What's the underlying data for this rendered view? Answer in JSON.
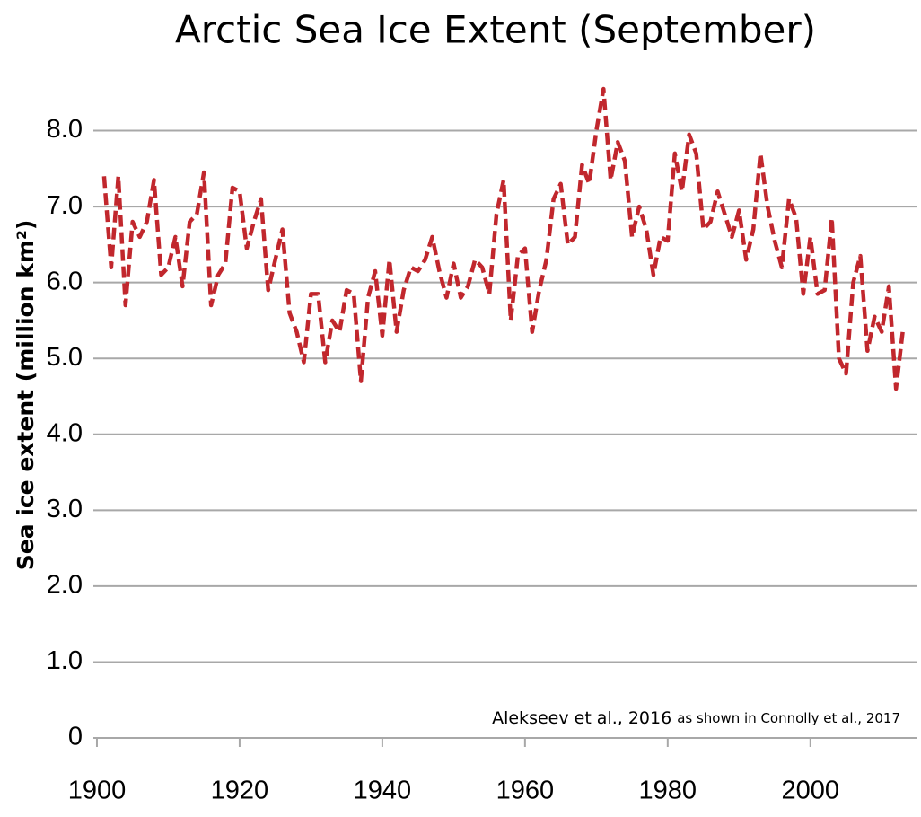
{
  "chart_data": {
    "type": "line",
    "title": "Arctic Sea Ice Extent (September)",
    "y_label": "Sea ice extent (million km²)",
    "annotations": [
      "Alekseev et al., 2016",
      "as shown in Connolly et al., 2017"
    ],
    "x": [
      1901,
      1902,
      1903,
      1904,
      1905,
      1906,
      1907,
      1908,
      1909,
      1910,
      1911,
      1912,
      1913,
      1914,
      1915,
      1916,
      1917,
      1918,
      1919,
      1920,
      1921,
      1922,
      1923,
      1924,
      1925,
      1926,
      1927,
      1928,
      1929,
      1930,
      1931,
      1932,
      1933,
      1934,
      1935,
      1936,
      1937,
      1938,
      1939,
      1940,
      1941,
      1942,
      1943,
      1944,
      1945,
      1946,
      1947,
      1948,
      1949,
      1950,
      1951,
      1952,
      1953,
      1954,
      1955,
      1956,
      1957,
      1958,
      1959,
      1960,
      1961,
      1962,
      1963,
      1964,
      1965,
      1966,
      1967,
      1968,
      1969,
      1970,
      1971,
      1972,
      1973,
      1974,
      1975,
      1976,
      1977,
      1978,
      1979,
      1980,
      1981,
      1982,
      1983,
      1984,
      1985,
      1986,
      1987,
      1988,
      1989,
      1990,
      1991,
      1992,
      1993,
      1994,
      1995,
      1996,
      1997,
      1998,
      1999,
      2000,
      2001,
      2002,
      2003,
      2004,
      2005,
      2006,
      2007,
      2008,
      2009,
      2010,
      2011,
      2012,
      2013
    ],
    "series": [
      {
        "color": "#c1272d",
        "values": [
          7.4,
          6.2,
          7.4,
          5.7,
          6.8,
          6.6,
          6.8,
          7.35,
          6.1,
          6.2,
          6.6,
          5.95,
          6.8,
          6.9,
          7.45,
          5.7,
          6.1,
          6.25,
          7.25,
          7.2,
          6.45,
          6.8,
          7.1,
          5.9,
          6.3,
          6.7,
          5.6,
          5.35,
          4.95,
          5.85,
          5.85,
          4.95,
          5.5,
          5.35,
          5.9,
          5.85,
          4.7,
          5.8,
          6.15,
          5.3,
          6.3,
          5.35,
          5.9,
          6.2,
          6.15,
          6.3,
          6.6,
          6.15,
          5.8,
          6.25,
          5.8,
          5.95,
          6.3,
          6.2,
          5.85,
          6.9,
          7.35,
          5.5,
          6.35,
          6.45,
          5.35,
          5.9,
          6.3,
          7.1,
          7.3,
          6.5,
          6.6,
          7.55,
          7.3,
          8.0,
          8.55,
          7.35,
          7.85,
          7.6,
          6.6,
          7.0,
          6.7,
          6.1,
          6.6,
          6.55,
          7.7,
          7.2,
          7.95,
          7.7,
          6.7,
          6.8,
          7.2,
          6.9,
          6.6,
          6.95,
          6.3,
          6.7,
          7.7,
          7.0,
          6.55,
          6.2,
          7.1,
          6.85,
          5.85,
          6.6,
          5.85,
          5.9,
          6.85,
          5.0,
          4.8,
          6.0,
          6.35,
          5.1,
          5.55,
          5.35,
          5.95,
          4.6,
          5.4
        ]
      }
    ],
    "xlim": [
      1899.5,
      2015
    ],
    "xticks": [
      1900,
      1920,
      1940,
      1960,
      1980,
      2000
    ],
    "ylim": [
      0,
      9
    ],
    "yticks": [
      0,
      {
        "value": 1,
        "label": "1.0"
      },
      {
        "value": 2,
        "label": "2.0"
      },
      {
        "value": 3,
        "label": "3.0"
      },
      {
        "value": 4,
        "label": "4.0"
      },
      {
        "value": 5,
        "label": "5.0"
      },
      {
        "value": 6,
        "label": "6.0"
      },
      {
        "value": 7,
        "label": "7.0"
      },
      {
        "value": 8,
        "label": "8.0"
      }
    ],
    "grid": true
  }
}
